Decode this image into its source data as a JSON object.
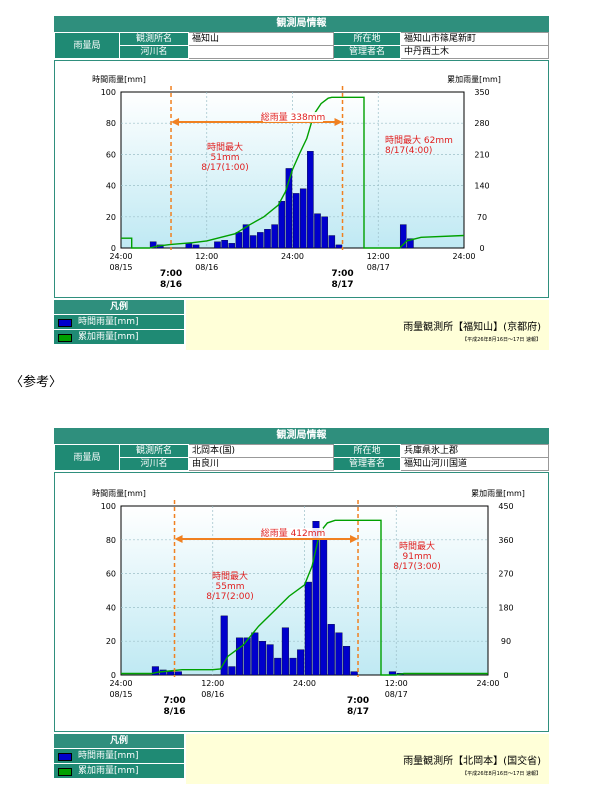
{
  "reference_label": "〈参考〉",
  "panels": [
    {
      "header": "観測局情報",
      "info": {
        "category": "雨量局",
        "station_label": "観測所名",
        "station": "福知山",
        "location_label": "所在地",
        "location": "福知山市篠尾新町",
        "river_label": "河川名",
        "river": "",
        "manager_label": "管理者名",
        "manager": "中丹西土木"
      },
      "legend": {
        "title": "凡例",
        "hourly": "時間雨量[mm]",
        "cumulative": "累加雨量[mm]",
        "station_text": "雨量観測所【福知山】(京都府)",
        "period": "【平成26年8月16日～17日 速報】"
      },
      "chart_data": {
        "type": "bar",
        "ylabel_left": "時間雨量[mm]",
        "ylabel_right": "累加雨量[mm]",
        "y_ticks_left": [
          "0",
          "20",
          "40",
          "60",
          "80",
          "100"
        ],
        "y_ticks_right": [
          "0",
          "70",
          "140",
          "210",
          "280",
          "350"
        ],
        "ylim_left": [
          0,
          100
        ],
        "ylim_right": [
          0,
          350
        ],
        "xlim": [
          0,
          48
        ],
        "x_ticks": [
          {
            "t": 0,
            "time": "24:00",
            "date": "08/15"
          },
          {
            "t": 12,
            "time": "12:00",
            "date": "08/16"
          },
          {
            "t": 24,
            "time": "24:00",
            "date": ""
          },
          {
            "t": 36,
            "time": "12:00",
            "date": "08/17"
          },
          {
            "t": 48,
            "time": "24:00",
            "date": ""
          }
        ],
        "markers": [
          {
            "t": 7,
            "time": "7:00",
            "date": "8/16"
          },
          {
            "t": 31,
            "time": "7:00",
            "date": "8/17"
          }
        ],
        "hourly_bars": [
          {
            "t": 5,
            "v": 4
          },
          {
            "t": 6,
            "v": 2
          },
          {
            "t": 10,
            "v": 3
          },
          {
            "t": 11,
            "v": 2
          },
          {
            "t": 14,
            "v": 4
          },
          {
            "t": 15,
            "v": 5
          },
          {
            "t": 16,
            "v": 3
          },
          {
            "t": 17,
            "v": 10
          },
          {
            "t": 18,
            "v": 15
          },
          {
            "t": 19,
            "v": 8
          },
          {
            "t": 20,
            "v": 10
          },
          {
            "t": 21,
            "v": 12
          },
          {
            "t": 22,
            "v": 15
          },
          {
            "t": 23,
            "v": 30
          },
          {
            "t": 24,
            "v": 51
          },
          {
            "t": 25,
            "v": 35
          },
          {
            "t": 26,
            "v": 38
          },
          {
            "t": 27,
            "v": 62
          },
          {
            "t": 28,
            "v": 22
          },
          {
            "t": 29,
            "v": 20
          },
          {
            "t": 30,
            "v": 8
          },
          {
            "t": 31,
            "v": 2
          },
          {
            "t": 40,
            "v": 15
          },
          {
            "t": 41,
            "v": 6
          }
        ],
        "cumulative_line": [
          [
            0,
            22
          ],
          [
            1.5,
            22
          ],
          [
            1.5,
            0
          ],
          [
            4,
            0
          ],
          [
            5,
            4
          ],
          [
            7,
            8
          ],
          [
            10,
            12
          ],
          [
            12,
            16
          ],
          [
            14,
            24
          ],
          [
            16,
            32
          ],
          [
            18,
            52
          ],
          [
            20,
            70
          ],
          [
            22,
            96
          ],
          [
            23,
            126
          ],
          [
            24,
            176
          ],
          [
            25,
            212
          ],
          [
            26,
            246
          ],
          [
            27,
            300
          ],
          [
            28,
            324
          ],
          [
            29,
            336
          ],
          [
            29.5,
            338
          ],
          [
            31,
            338
          ],
          [
            34,
            338
          ],
          [
            34,
            0
          ],
          [
            39,
            0
          ],
          [
            40,
            16
          ],
          [
            42,
            24
          ],
          [
            48,
            28
          ]
        ],
        "annotations": [
          {
            "type": "total",
            "text": "総雨量 338mm"
          },
          {
            "type": "max",
            "lines": [
              "時間最大",
              "51mm",
              "8/17(1:00)"
            ]
          },
          {
            "type": "max",
            "lines": [
              "時間最大 62mm",
              "8/17(4:00)"
            ]
          }
        ]
      }
    },
    {
      "header": "観測局情報",
      "info": {
        "category": "雨量局",
        "station_label": "観測所名",
        "station": "北岡本(国)",
        "location_label": "所在地",
        "location": "兵庫県氷上郡",
        "river_label": "河川名",
        "river": "由良川",
        "manager_label": "管理者名",
        "manager": "福知山河川国道"
      },
      "legend": {
        "title": "凡例",
        "hourly": "時間雨量[mm]",
        "cumulative": "累加雨量[mm]",
        "station_text": "雨量観測所【北岡本】(国交省)",
        "period": "【平成26年8月16日～17日 速報】"
      },
      "chart_data": {
        "type": "bar",
        "ylabel_left": "時間雨量[mm]",
        "ylabel_right": "累加雨量[mm]",
        "y_ticks_left": [
          "0",
          "20",
          "40",
          "60",
          "80",
          "100"
        ],
        "y_ticks_right": [
          "0",
          "90",
          "180",
          "270",
          "360",
          "450"
        ],
        "ylim_left": [
          0,
          100
        ],
        "ylim_right": [
          0,
          450
        ],
        "xlim": [
          0,
          48
        ],
        "x_ticks": [
          {
            "t": 0,
            "time": "24:00",
            "date": "08/15"
          },
          {
            "t": 12,
            "time": "12:00",
            "date": "08/16"
          },
          {
            "t": 24,
            "time": "24:00",
            "date": ""
          },
          {
            "t": 36,
            "time": "12:00",
            "date": "08/17"
          },
          {
            "t": 48,
            "time": "24:00",
            "date": ""
          }
        ],
        "markers": [
          {
            "t": 7,
            "time": "7:00",
            "date": "8/16"
          },
          {
            "t": 31,
            "time": "7:00",
            "date": "8/17"
          }
        ],
        "hourly_bars": [
          {
            "t": 5,
            "v": 5
          },
          {
            "t": 6,
            "v": 3
          },
          {
            "t": 7,
            "v": 2
          },
          {
            "t": 8,
            "v": 2
          },
          {
            "t": 14,
            "v": 35
          },
          {
            "t": 15,
            "v": 5
          },
          {
            "t": 16,
            "v": 22
          },
          {
            "t": 17,
            "v": 22
          },
          {
            "t": 18,
            "v": 25
          },
          {
            "t": 19,
            "v": 20
          },
          {
            "t": 20,
            "v": 18
          },
          {
            "t": 21,
            "v": 10
          },
          {
            "t": 22,
            "v": 28
          },
          {
            "t": 23,
            "v": 10
          },
          {
            "t": 24,
            "v": 15
          },
          {
            "t": 25,
            "v": 55
          },
          {
            "t": 26,
            "v": 91
          },
          {
            "t": 27,
            "v": 80
          },
          {
            "t": 28,
            "v": 30
          },
          {
            "t": 29,
            "v": 25
          },
          {
            "t": 30,
            "v": 17
          },
          {
            "t": 31,
            "v": 2
          },
          {
            "t": 36,
            "v": 2
          },
          {
            "t": 37,
            "v": 1
          }
        ],
        "cumulative_line": [
          [
            0,
            4
          ],
          [
            4,
            4
          ],
          [
            5,
            8
          ],
          [
            8,
            14
          ],
          [
            12,
            14
          ],
          [
            13,
            16
          ],
          [
            14,
            50
          ],
          [
            16,
            80
          ],
          [
            18,
            130
          ],
          [
            20,
            170
          ],
          [
            22,
            210
          ],
          [
            24,
            240
          ],
          [
            25,
            290
          ],
          [
            26,
            380
          ],
          [
            27,
            405
          ],
          [
            28,
            412
          ],
          [
            31,
            412
          ],
          [
            34,
            412
          ],
          [
            34,
            0
          ],
          [
            36,
            0
          ],
          [
            37,
            4
          ],
          [
            48,
            4
          ]
        ],
        "annotations": [
          {
            "type": "total",
            "text": "総雨量 412mm"
          },
          {
            "type": "max",
            "lines": [
              "時間最大",
              "55mm",
              "8/17(2:00)"
            ]
          },
          {
            "type": "max",
            "lines": [
              "時間最大",
              "91mm",
              "8/17(3:00)"
            ]
          }
        ]
      }
    }
  ]
}
